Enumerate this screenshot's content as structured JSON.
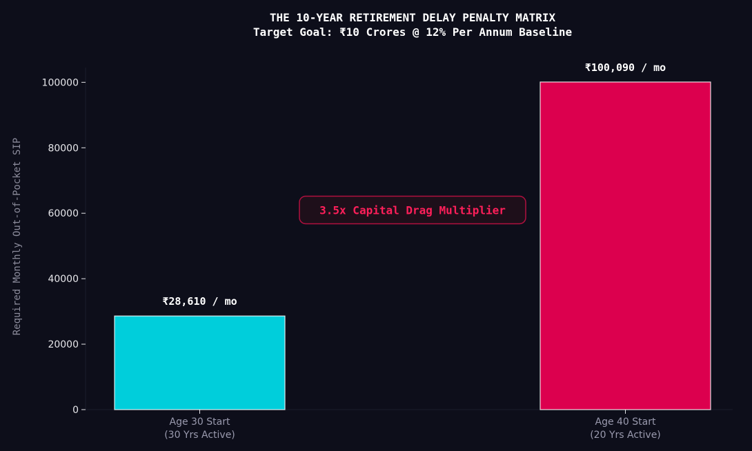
{
  "chart_data": {
    "type": "bar",
    "title": "THE 10-YEAR RETIREMENT DELAY PENALTY MATRIX",
    "subtitle": "Target Goal: ₹10 Crores @ 12% Per Annum Baseline",
    "xlabel": "",
    "ylabel": "Required Monthly Out-of-Pocket SIP",
    "ylim": [
      0,
      104500
    ],
    "yticks": [
      0,
      20000,
      40000,
      60000,
      80000,
      100000
    ],
    "ytick_labels": [
      "0",
      "20000",
      "40000",
      "60000",
      "80000",
      "100000"
    ],
    "grid": false,
    "categories": [
      {
        "line1": "Age 30 Start",
        "line2": "(30 Yrs Active)"
      },
      {
        "line1": "Age 40 Start",
        "line2": "(20 Yrs Active)"
      }
    ],
    "values": [
      28610,
      100090
    ],
    "data_labels": [
      "₹28,610 / mo",
      "₹100,090 / mo"
    ],
    "colors": [
      "#00cedb",
      "#dc004e"
    ],
    "bar_edge_color": "#ffffff",
    "annotation": {
      "text": "3.5x Capital Drag Multiplier",
      "y": 61000,
      "color": "#ff1f5a"
    }
  }
}
